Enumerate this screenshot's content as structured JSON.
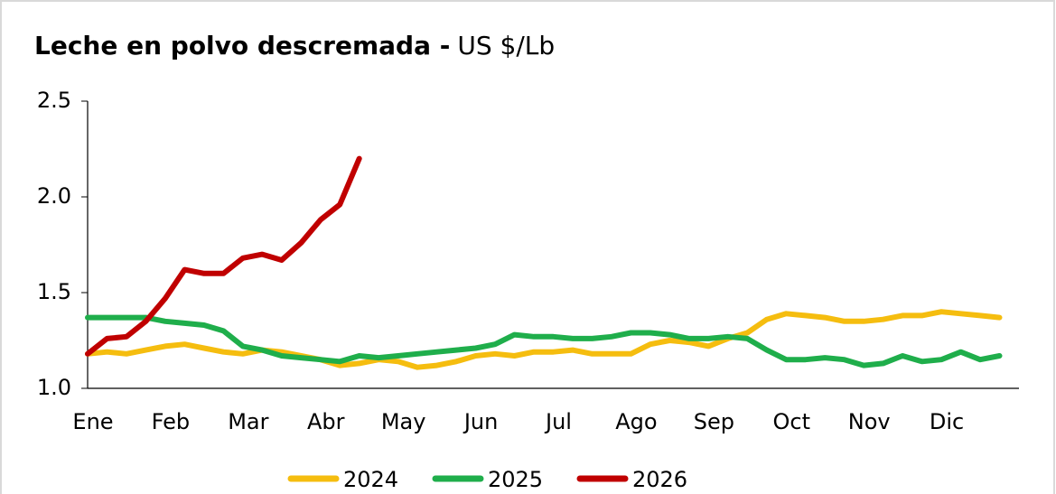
{
  "chart_data": {
    "type": "line",
    "title": "Leche en polvo descremada -",
    "subtitle": "US $/Lb",
    "categories": [
      "Ene",
      null,
      null,
      null,
      "Feb",
      null,
      null,
      null,
      "Mar",
      null,
      null,
      null,
      "Abr",
      null,
      null,
      null,
      "May",
      null,
      null,
      null,
      "Jun",
      null,
      null,
      null,
      "Jul",
      null,
      null,
      null,
      "Ago",
      null,
      null,
      null,
      "Sep",
      null,
      null,
      null,
      "Oct",
      null,
      null,
      null,
      "Nov",
      null,
      null,
      null,
      "Dic",
      null,
      null,
      null
    ],
    "series": [
      {
        "name": "2024",
        "color": "#f5bd0f",
        "values": [
          1.18,
          1.19,
          1.18,
          1.2,
          1.22,
          1.23,
          1.21,
          1.19,
          1.18,
          1.2,
          1.19,
          1.17,
          1.15,
          1.12,
          1.13,
          1.15,
          1.14,
          1.11,
          1.12,
          1.14,
          1.17,
          1.18,
          1.17,
          1.19,
          1.19,
          1.2,
          1.18,
          1.18,
          1.18,
          1.23,
          1.25,
          1.24,
          1.22,
          1.26,
          1.29,
          1.36,
          1.39,
          1.38,
          1.37,
          1.35,
          1.35,
          1.36,
          1.38,
          1.38,
          1.4,
          1.39,
          1.38,
          1.37
        ]
      },
      {
        "name": "2025",
        "color": "#1fae4b",
        "values": [
          1.37,
          1.37,
          1.37,
          1.37,
          1.35,
          1.34,
          1.33,
          1.3,
          1.22,
          1.2,
          1.17,
          1.16,
          1.15,
          1.14,
          1.17,
          1.16,
          1.17,
          1.18,
          1.19,
          1.2,
          1.21,
          1.23,
          1.28,
          1.27,
          1.27,
          1.26,
          1.26,
          1.27,
          1.29,
          1.29,
          1.28,
          1.26,
          1.26,
          1.27,
          1.26,
          1.2,
          1.15,
          1.15,
          1.16,
          1.15,
          1.12,
          1.13,
          1.17,
          1.14,
          1.15,
          1.19,
          1.15,
          1.17
        ]
      },
      {
        "name": "2026",
        "color": "#c00000",
        "values": [
          1.18,
          1.26,
          1.27,
          1.35,
          1.47,
          1.62,
          1.6,
          1.6,
          1.68,
          1.7,
          1.67,
          1.76,
          1.88,
          1.96,
          2.2,
          null,
          null,
          null,
          null,
          null,
          null,
          null,
          null,
          null,
          null,
          null,
          null,
          null,
          null,
          null,
          null,
          null,
          null,
          null,
          null,
          null,
          null,
          null,
          null,
          null,
          null,
          null,
          null,
          null,
          null,
          null,
          null,
          null
        ]
      }
    ],
    "ylim": [
      1,
      2.5
    ],
    "yticks": [
      {
        "value": 1,
        "label": "1.0"
      },
      1.5,
      {
        "value": 2,
        "label": "2.0"
      },
      2.5
    ],
    "legend": "bottom"
  }
}
